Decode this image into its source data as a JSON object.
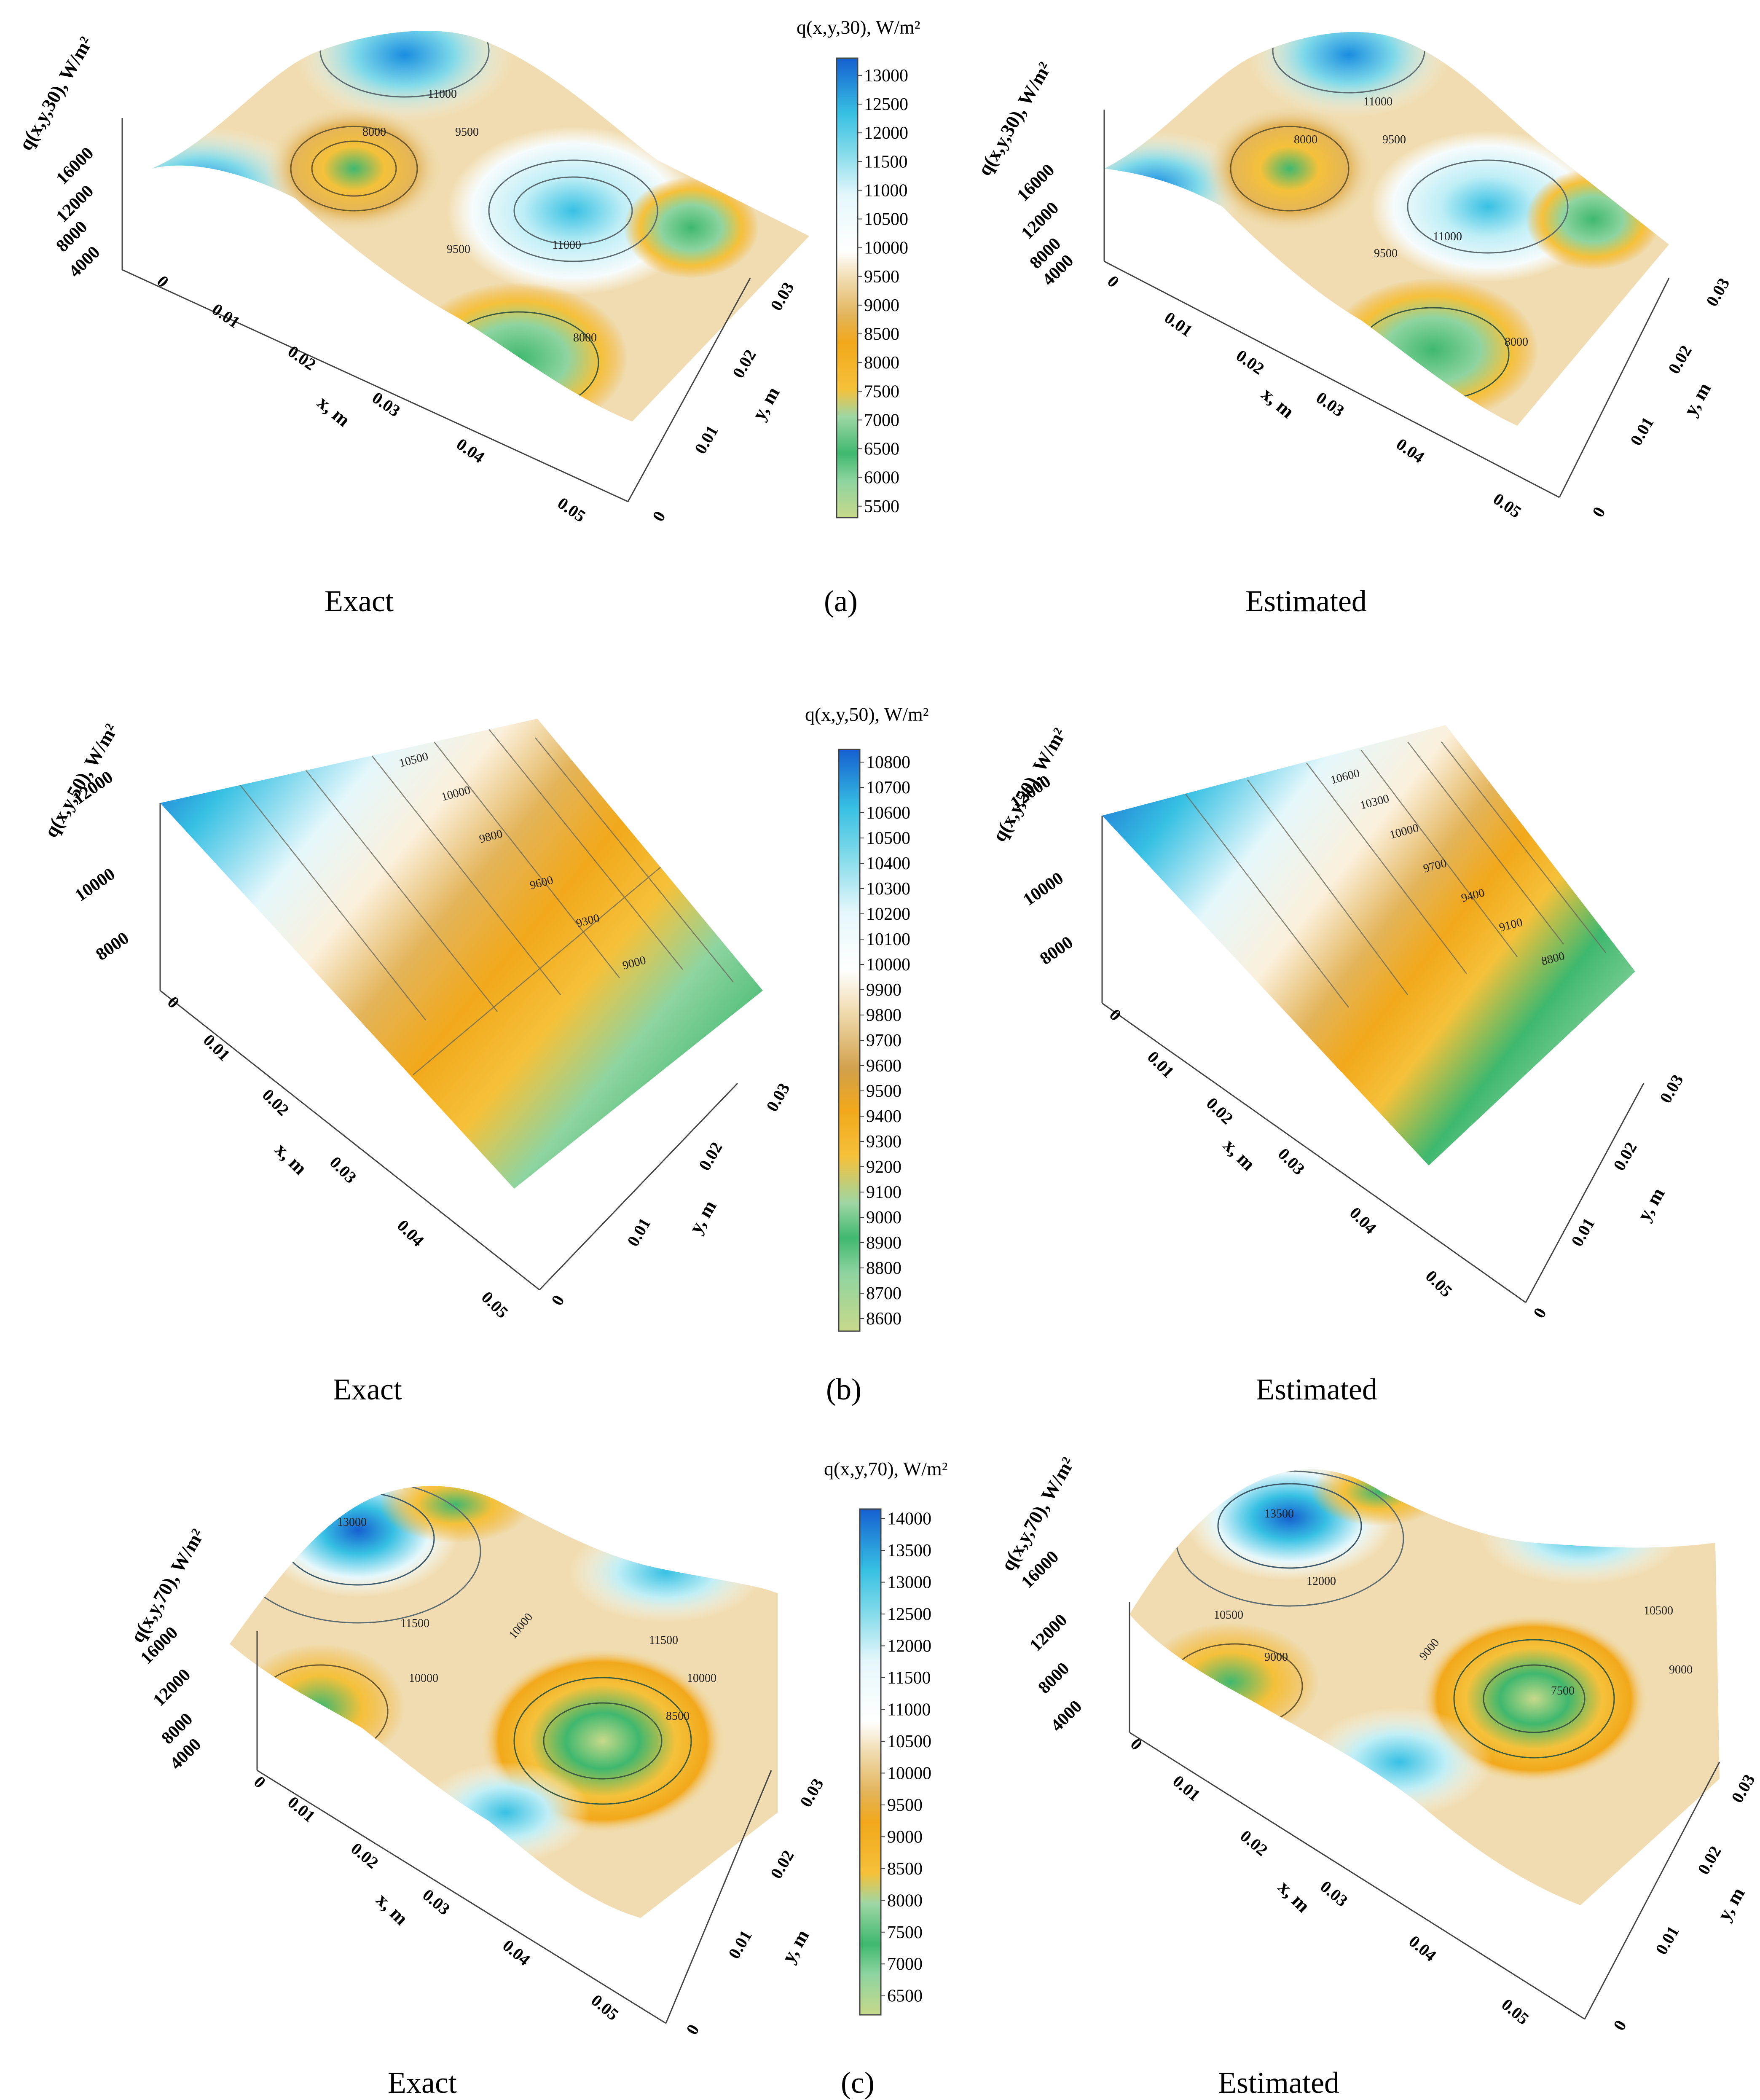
{
  "palette": [
    "#c7d98a",
    "#8ed4a0",
    "#3fb86e",
    "#9ed6a4",
    "#f5c13a",
    "#f2a81a",
    "#e3b45a",
    "#f0dcb0",
    "#fbf0dc",
    "#ffffff",
    "#e5f7fb",
    "#7ed9e9",
    "#37c0e3",
    "#1a8de0",
    "#1560d0"
  ],
  "chart_data": [
    {
      "type": "surface3d",
      "panel": "a",
      "side": "exact",
      "caption": "Exact",
      "z_label": "q(x,y,30), W/m²",
      "x_label": "x, m",
      "y_label": "y, m",
      "z_ticks": [
        "4000",
        "8000",
        "12000",
        "16000"
      ],
      "x_ticks": [
        "0",
        "0.01",
        "0.02",
        "0.03",
        "0.04",
        "0.05"
      ],
      "y_ticks": [
        "0",
        "0.01",
        "0.02",
        "0.03"
      ],
      "contour_labels": [
        "11000",
        "8000",
        "9500",
        "11000",
        "9500",
        "8000"
      ]
    },
    {
      "type": "surface3d",
      "panel": "a",
      "side": "estimated",
      "caption": "Estimated",
      "z_label": "q(x,y,30), W/m²",
      "x_label": "x, m",
      "y_label": "y, m",
      "z_ticks": [
        "4000",
        "8000",
        "12000",
        "16000"
      ],
      "x_ticks": [
        "0",
        "0.01",
        "0.02",
        "0.03",
        "0.04",
        "0.05"
      ],
      "y_ticks": [
        "0",
        "0.01",
        "0.02",
        "0.03"
      ],
      "contour_labels": [
        "11000",
        "8000",
        "9500",
        "11000",
        "9500",
        "8000"
      ]
    },
    {
      "type": "colorbar",
      "panel": "a",
      "title": "q(x,y,30), W/m²",
      "range": [
        5300,
        13300
      ],
      "ticks": [
        "5500",
        "6000",
        "6500",
        "7000",
        "7500",
        "8000",
        "8500",
        "9000",
        "9500",
        "10000",
        "10500",
        "11000",
        "11500",
        "12000",
        "12500",
        "13000"
      ]
    },
    {
      "type": "surface3d",
      "panel": "b",
      "side": "exact",
      "caption": "Exact",
      "z_label": "q(x,y,50), W/m²",
      "x_label": "x, m",
      "y_label": "y, m",
      "z_ticks": [
        "8000",
        "10000",
        "12000"
      ],
      "x_ticks": [
        "0",
        "0.01",
        "0.02",
        "0.03",
        "0.04",
        "0.05"
      ],
      "y_ticks": [
        "0",
        "0.01",
        "0.02",
        "0.03"
      ],
      "contour_labels": [
        "10500",
        "10000",
        "9800",
        "9600",
        "9300",
        "9000"
      ]
    },
    {
      "type": "surface3d",
      "panel": "b",
      "side": "estimated",
      "caption": "Estimated",
      "z_label": "q(x,y,50), W/m²",
      "x_label": "x, m",
      "y_label": "y, m",
      "z_ticks": [
        "8000",
        "10000",
        "12000"
      ],
      "x_ticks": [
        "0",
        "0.01",
        "0.02",
        "0.03",
        "0.04",
        "0.05"
      ],
      "y_ticks": [
        "0",
        "0.01",
        "0.02",
        "0.03"
      ],
      "contour_labels": [
        "10600",
        "10300",
        "10000",
        "9700",
        "9400",
        "9100",
        "8800"
      ]
    },
    {
      "type": "colorbar",
      "panel": "b",
      "title": "q(x,y,50), W/m²",
      "range": [
        8550,
        10850
      ],
      "ticks": [
        "8600",
        "8700",
        "8800",
        "8900",
        "9000",
        "9100",
        "9200",
        "9300",
        "9400",
        "9500",
        "9600",
        "9700",
        "9800",
        "9900",
        "10000",
        "10100",
        "10200",
        "10300",
        "10400",
        "10500",
        "10600",
        "10700",
        "10800"
      ]
    },
    {
      "type": "surface3d",
      "panel": "c",
      "side": "exact",
      "caption": "Exact",
      "z_label": "q(x,y,70), W/m²",
      "x_label": "x, m",
      "y_label": "y, m",
      "z_ticks": [
        "4000",
        "8000",
        "12000",
        "16000"
      ],
      "x_ticks": [
        "0",
        "0.01",
        "0.02",
        "0.03",
        "0.04",
        "0.05"
      ],
      "y_ticks": [
        "0",
        "0.01",
        "0.02",
        "0.03"
      ],
      "contour_labels": [
        "13000",
        "11500",
        "10000",
        "11500",
        "10000",
        "8500",
        "10000"
      ]
    },
    {
      "type": "surface3d",
      "panel": "c",
      "side": "estimated",
      "caption": "Estimated",
      "z_label": "q(x,y,70), W/m²",
      "x_label": "x, m",
      "y_label": "y, m",
      "z_ticks": [
        "4000",
        "8000",
        "12000",
        "16000"
      ],
      "x_ticks": [
        "0",
        "0.01",
        "0.02",
        "0.03",
        "0.04",
        "0.05"
      ],
      "y_ticks": [
        "0",
        "0.01",
        "0.02",
        "0.03"
      ],
      "contour_labels": [
        "13500",
        "12000",
        "10500",
        "10500",
        "9000",
        "9000",
        "7500",
        "9000"
      ]
    },
    {
      "type": "colorbar",
      "panel": "c",
      "title": "q(x,y,70), W/m²",
      "range": [
        6200,
        14150
      ],
      "ticks": [
        "6500",
        "7000",
        "7500",
        "8000",
        "8500",
        "9000",
        "9500",
        "10000",
        "10500",
        "11000",
        "11500",
        "12000",
        "12500",
        "13000",
        "13500",
        "14000"
      ]
    }
  ],
  "panel_labels": {
    "a": "(a)",
    "b": "(b)",
    "c": "(c)"
  }
}
